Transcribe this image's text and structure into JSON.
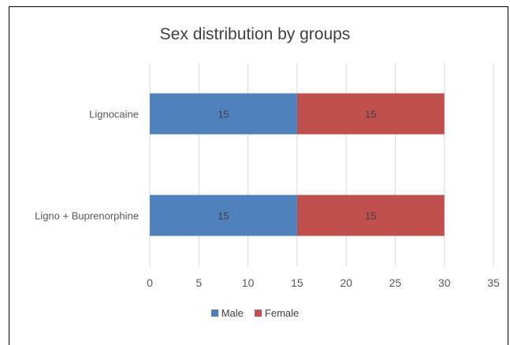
{
  "chart_data": {
    "type": "bar",
    "orientation": "horizontal",
    "stacked": true,
    "title": "Sex distribution by groups",
    "categories": [
      "Lignocaine",
      "Ligno + Buprenorphine"
    ],
    "series": [
      {
        "name": "Male",
        "values": [
          15,
          15
        ],
        "color": "#4f81bd"
      },
      {
        "name": "Female",
        "values": [
          15,
          15
        ],
        "color": "#c0504d"
      }
    ],
    "xlim": [
      0,
      35
    ],
    "xticks": [
      0,
      5,
      10,
      15,
      20,
      25,
      30,
      35
    ],
    "grid": "vertical",
    "legend": "bottom",
    "data_labels": true
  }
}
